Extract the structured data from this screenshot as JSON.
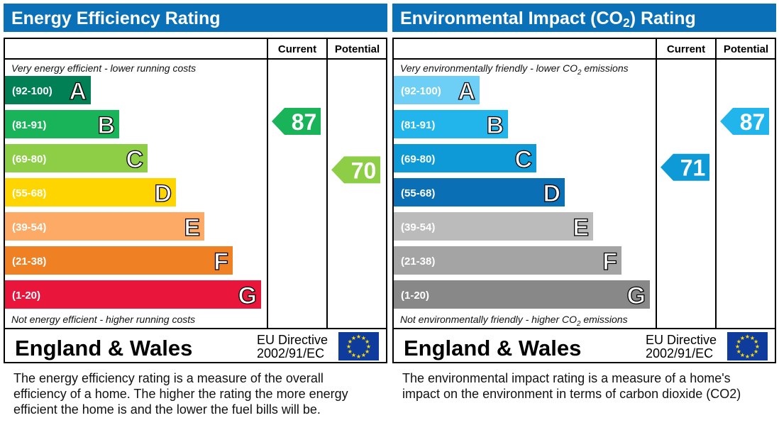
{
  "chart_data": [
    {
      "type": "bar",
      "title": "Energy Efficiency Rating",
      "columns": [
        "Current",
        "Potential"
      ],
      "top_note": "Very energy efficient - lower running costs",
      "bottom_note": "Not energy efficient - higher running costs",
      "bands": [
        {
          "range": "(92-100)",
          "letter": "A",
          "lo": 92,
          "hi": 100,
          "color": "#008054"
        },
        {
          "range": "(81-91)",
          "letter": "B",
          "lo": 81,
          "hi": 91,
          "color": "#19b459"
        },
        {
          "range": "(69-80)",
          "letter": "C",
          "lo": 69,
          "hi": 80,
          "color": "#8dce46"
        },
        {
          "range": "(55-68)",
          "letter": "D",
          "lo": 55,
          "hi": 68,
          "color": "#ffd500"
        },
        {
          "range": "(39-54)",
          "letter": "E",
          "lo": 39,
          "hi": 54,
          "color": "#fcaa65"
        },
        {
          "range": "(21-38)",
          "letter": "F",
          "lo": 21,
          "hi": 38,
          "color": "#ef8023"
        },
        {
          "range": "(1-20)",
          "letter": "G",
          "lo": 1,
          "hi": 20,
          "color": "#e9153b"
        }
      ],
      "current": 87,
      "potential": 70,
      "footer": {
        "region": "England & Wales",
        "directive_line1": "EU Directive",
        "directive_line2": "2002/91/EC"
      },
      "description": [
        "The energy efficiency rating is a measure of the overall",
        "efficiency of a home.  The higher the rating the more energy",
        "efficient the home is and the lower the fuel bills will be."
      ]
    },
    {
      "type": "bar",
      "title": "Environmental Impact (CO₂) Rating",
      "title_parts": [
        "Environmental Impact (CO",
        "2",
        ") Rating"
      ],
      "columns": [
        "Current",
        "Potential"
      ],
      "top_note_parts": [
        "Very environmentally friendly - lower CO",
        "2",
        " emissions"
      ],
      "bottom_note_parts": [
        "Not environmentally friendly - higher CO",
        "2",
        " emissions"
      ],
      "bands": [
        {
          "range": "(92-100)",
          "letter": "A",
          "lo": 92,
          "hi": 100,
          "color": "#6dcff6"
        },
        {
          "range": "(81-91)",
          "letter": "B",
          "lo": 81,
          "hi": 91,
          "color": "#22b5ec"
        },
        {
          "range": "(69-80)",
          "letter": "C",
          "lo": 69,
          "hi": 80,
          "color": "#0d9ad6"
        },
        {
          "range": "(55-68)",
          "letter": "D",
          "lo": 55,
          "hi": 68,
          "color": "#0a6fb4"
        },
        {
          "range": "(39-54)",
          "letter": "E",
          "lo": 39,
          "hi": 54,
          "color": "#bbbbbb"
        },
        {
          "range": "(21-38)",
          "letter": "F",
          "lo": 21,
          "hi": 38,
          "color": "#a4a4a4"
        },
        {
          "range": "(1-20)",
          "letter": "G",
          "lo": 1,
          "hi": 20,
          "color": "#888888"
        }
      ],
      "current": 71,
      "potential": 87,
      "footer": {
        "region": "England & Wales",
        "directive_line1": "EU Directive",
        "directive_line2": "2002/91/EC"
      },
      "description": [
        "The environmental impact rating is a measure of a home's",
        "impact on the environment in terms of carbon dioxide (CO2)"
      ]
    }
  ],
  "colors": {
    "title_bar": "#0a70b8",
    "eu_flag": "#0f3c9c",
    "eu_stars": "#ffdd00"
  }
}
